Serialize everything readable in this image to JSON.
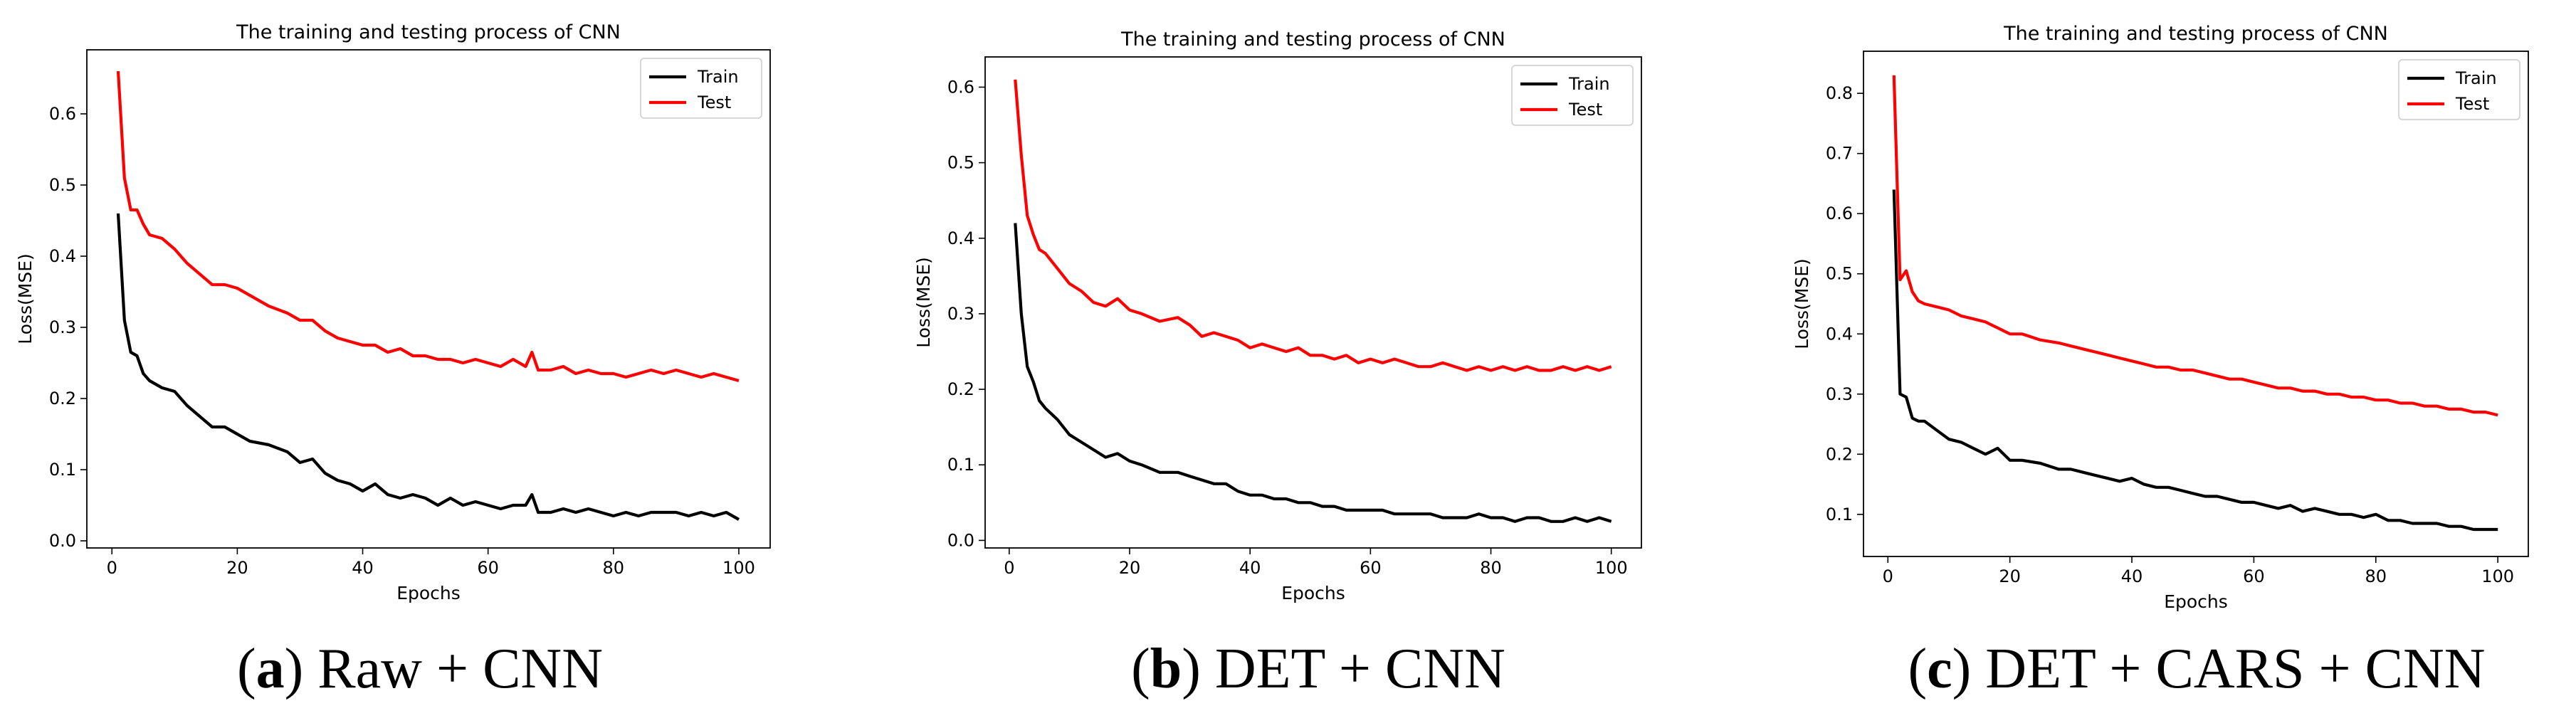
{
  "colors": {
    "train": "#000000",
    "test": "#ff0000",
    "axis": "#000000",
    "legend_border": "#cccccc"
  },
  "chart_data": [
    {
      "type": "line",
      "panel_letter": "a",
      "caption": "Raw + CNN",
      "title": "The training and testing process of CNN",
      "xlabel": "Epochs",
      "ylabel": "Loss(MSE)",
      "xlim": [
        -4,
        105
      ],
      "ylim": [
        -0.01,
        0.69
      ],
      "xticks": [
        0,
        20,
        40,
        60,
        80,
        100
      ],
      "yticks": [
        0.0,
        0.1,
        0.2,
        0.3,
        0.4,
        0.5,
        0.6
      ],
      "ytick_labels": [
        "0.0",
        "0.1",
        "0.2",
        "0.3",
        "0.4",
        "0.5",
        "0.6"
      ],
      "legend_position": "top-right",
      "series": [
        {
          "name": "Train",
          "color": "#000000",
          "x": [
            1,
            2,
            3,
            4,
            5,
            6,
            8,
            10,
            12,
            14,
            16,
            18,
            20,
            22,
            25,
            28,
            30,
            32,
            34,
            36,
            38,
            40,
            42,
            44,
            46,
            48,
            50,
            52,
            54,
            56,
            58,
            60,
            62,
            64,
            66,
            67,
            68,
            70,
            72,
            74,
            76,
            78,
            80,
            82,
            84,
            86,
            88,
            90,
            92,
            94,
            96,
            98,
            100
          ],
          "y": [
            0.46,
            0.31,
            0.265,
            0.26,
            0.235,
            0.225,
            0.215,
            0.21,
            0.19,
            0.175,
            0.16,
            0.16,
            0.15,
            0.14,
            0.135,
            0.125,
            0.11,
            0.115,
            0.095,
            0.085,
            0.08,
            0.07,
            0.08,
            0.065,
            0.06,
            0.065,
            0.06,
            0.05,
            0.06,
            0.05,
            0.055,
            0.05,
            0.045,
            0.05,
            0.05,
            0.065,
            0.04,
            0.04,
            0.045,
            0.04,
            0.045,
            0.04,
            0.035,
            0.04,
            0.035,
            0.04,
            0.04,
            0.04,
            0.035,
            0.04,
            0.035,
            0.04,
            0.03
          ]
        },
        {
          "name": "Test",
          "color": "#ff0000",
          "x": [
            1,
            2,
            3,
            4,
            5,
            6,
            8,
            10,
            12,
            14,
            16,
            18,
            20,
            22,
            25,
            28,
            30,
            32,
            34,
            36,
            38,
            40,
            42,
            44,
            46,
            48,
            50,
            52,
            54,
            56,
            58,
            60,
            62,
            64,
            66,
            67,
            68,
            70,
            72,
            74,
            76,
            78,
            80,
            82,
            84,
            86,
            88,
            90,
            92,
            94,
            96,
            98,
            100
          ],
          "y": [
            0.66,
            0.51,
            0.465,
            0.465,
            0.445,
            0.43,
            0.425,
            0.41,
            0.39,
            0.375,
            0.36,
            0.36,
            0.355,
            0.345,
            0.33,
            0.32,
            0.31,
            0.31,
            0.295,
            0.285,
            0.28,
            0.275,
            0.275,
            0.265,
            0.27,
            0.26,
            0.26,
            0.255,
            0.255,
            0.25,
            0.255,
            0.25,
            0.245,
            0.255,
            0.245,
            0.265,
            0.24,
            0.24,
            0.245,
            0.235,
            0.24,
            0.235,
            0.235,
            0.23,
            0.235,
            0.24,
            0.235,
            0.24,
            0.235,
            0.23,
            0.235,
            0.23,
            0.225
          ]
        }
      ]
    },
    {
      "type": "line",
      "panel_letter": "b",
      "caption": "DET + CNN",
      "title": "The training and testing process of CNN",
      "xlabel": "Epochs",
      "ylabel": "Loss(MSE)",
      "xlim": [
        -4,
        105
      ],
      "ylim": [
        -0.01,
        0.64
      ],
      "xticks": [
        0,
        20,
        40,
        60,
        80,
        100
      ],
      "yticks": [
        0.0,
        0.1,
        0.2,
        0.3,
        0.4,
        0.5,
        0.6
      ],
      "ytick_labels": [
        "0.0",
        "0.1",
        "0.2",
        "0.3",
        "0.4",
        "0.5",
        "0.6"
      ],
      "legend_position": "top-right",
      "series": [
        {
          "name": "Train",
          "color": "#000000",
          "x": [
            1,
            2,
            3,
            4,
            5,
            6,
            8,
            10,
            12,
            14,
            16,
            18,
            20,
            22,
            25,
            28,
            30,
            32,
            34,
            36,
            38,
            40,
            42,
            44,
            46,
            48,
            50,
            52,
            54,
            56,
            58,
            60,
            62,
            64,
            66,
            68,
            70,
            72,
            74,
            76,
            78,
            80,
            82,
            84,
            86,
            88,
            90,
            92,
            94,
            96,
            98,
            100
          ],
          "y": [
            0.42,
            0.3,
            0.23,
            0.21,
            0.185,
            0.175,
            0.16,
            0.14,
            0.13,
            0.12,
            0.11,
            0.115,
            0.105,
            0.1,
            0.09,
            0.09,
            0.085,
            0.08,
            0.075,
            0.075,
            0.065,
            0.06,
            0.06,
            0.055,
            0.055,
            0.05,
            0.05,
            0.045,
            0.045,
            0.04,
            0.04,
            0.04,
            0.04,
            0.035,
            0.035,
            0.035,
            0.035,
            0.03,
            0.03,
            0.03,
            0.035,
            0.03,
            0.03,
            0.025,
            0.03,
            0.03,
            0.025,
            0.025,
            0.03,
            0.025,
            0.03,
            0.025
          ]
        },
        {
          "name": "Test",
          "color": "#ff0000",
          "x": [
            1,
            2,
            3,
            4,
            5,
            6,
            8,
            10,
            12,
            14,
            16,
            18,
            20,
            22,
            25,
            28,
            30,
            32,
            34,
            36,
            38,
            40,
            42,
            44,
            46,
            48,
            50,
            52,
            54,
            56,
            58,
            60,
            62,
            64,
            66,
            68,
            70,
            72,
            74,
            76,
            78,
            80,
            82,
            84,
            86,
            88,
            90,
            92,
            94,
            96,
            98,
            100
          ],
          "y": [
            0.61,
            0.51,
            0.43,
            0.405,
            0.385,
            0.38,
            0.36,
            0.34,
            0.33,
            0.315,
            0.31,
            0.32,
            0.305,
            0.3,
            0.29,
            0.295,
            0.285,
            0.27,
            0.275,
            0.27,
            0.265,
            0.255,
            0.26,
            0.255,
            0.25,
            0.255,
            0.245,
            0.245,
            0.24,
            0.245,
            0.235,
            0.24,
            0.235,
            0.24,
            0.235,
            0.23,
            0.23,
            0.235,
            0.23,
            0.225,
            0.23,
            0.225,
            0.23,
            0.225,
            0.23,
            0.225,
            0.225,
            0.23,
            0.225,
            0.23,
            0.225,
            0.23
          ]
        }
      ]
    },
    {
      "type": "line",
      "panel_letter": "c",
      "caption": "DET + CARS + CNN",
      "title": "The training and testing process of CNN",
      "xlabel": "Epochs",
      "ylabel": "Loss(MSE)",
      "xlim": [
        -4,
        105
      ],
      "ylim": [
        0.03,
        0.87
      ],
      "xticks": [
        0,
        20,
        40,
        60,
        80,
        100
      ],
      "yticks": [
        0.1,
        0.2,
        0.3,
        0.4,
        0.5,
        0.6,
        0.7,
        0.8
      ],
      "ytick_labels": [
        "0.1",
        "0.2",
        "0.3",
        "0.4",
        "0.5",
        "0.6",
        "0.7",
        "0.8"
      ],
      "legend_position": "top-right",
      "series": [
        {
          "name": "Train",
          "color": "#000000",
          "x": [
            1,
            2,
            3,
            4,
            5,
            6,
            8,
            10,
            12,
            14,
            16,
            18,
            20,
            22,
            25,
            28,
            30,
            32,
            34,
            36,
            38,
            40,
            42,
            44,
            46,
            48,
            50,
            52,
            54,
            56,
            58,
            60,
            62,
            64,
            66,
            68,
            70,
            72,
            74,
            76,
            78,
            80,
            82,
            84,
            86,
            88,
            90,
            92,
            94,
            96,
            98,
            100
          ],
          "y": [
            0.64,
            0.3,
            0.295,
            0.26,
            0.255,
            0.255,
            0.24,
            0.225,
            0.22,
            0.21,
            0.2,
            0.21,
            0.19,
            0.19,
            0.185,
            0.175,
            0.175,
            0.17,
            0.165,
            0.16,
            0.155,
            0.16,
            0.15,
            0.145,
            0.145,
            0.14,
            0.135,
            0.13,
            0.13,
            0.125,
            0.12,
            0.12,
            0.115,
            0.11,
            0.115,
            0.105,
            0.11,
            0.105,
            0.1,
            0.1,
            0.095,
            0.1,
            0.09,
            0.09,
            0.085,
            0.085,
            0.085,
            0.08,
            0.08,
            0.075,
            0.075,
            0.075
          ]
        },
        {
          "name": "Test",
          "color": "#ff0000",
          "x": [
            1,
            2,
            3,
            4,
            5,
            6,
            8,
            10,
            12,
            14,
            16,
            18,
            20,
            22,
            25,
            28,
            30,
            32,
            34,
            36,
            38,
            40,
            42,
            44,
            46,
            48,
            50,
            52,
            54,
            56,
            58,
            60,
            62,
            64,
            66,
            68,
            70,
            72,
            74,
            76,
            78,
            80,
            82,
            84,
            86,
            88,
            90,
            92,
            94,
            96,
            98,
            100
          ],
          "y": [
            0.83,
            0.49,
            0.505,
            0.47,
            0.455,
            0.45,
            0.445,
            0.44,
            0.43,
            0.425,
            0.42,
            0.41,
            0.4,
            0.4,
            0.39,
            0.385,
            0.38,
            0.375,
            0.37,
            0.365,
            0.36,
            0.355,
            0.35,
            0.345,
            0.345,
            0.34,
            0.34,
            0.335,
            0.33,
            0.325,
            0.325,
            0.32,
            0.315,
            0.31,
            0.31,
            0.305,
            0.305,
            0.3,
            0.3,
            0.295,
            0.295,
            0.29,
            0.29,
            0.285,
            0.285,
            0.28,
            0.28,
            0.275,
            0.275,
            0.27,
            0.27,
            0.265
          ]
        }
      ]
    }
  ]
}
